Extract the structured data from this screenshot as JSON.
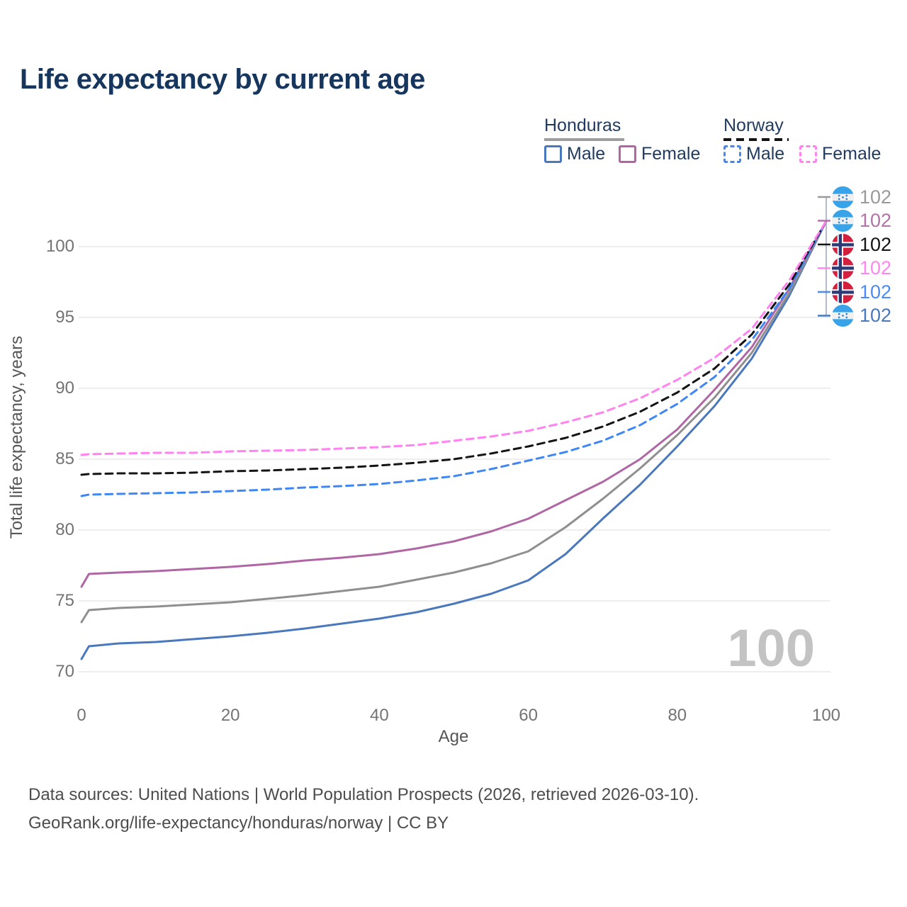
{
  "title": "Life expectancy by current age",
  "legend": {
    "honduras": {
      "label": "Honduras",
      "male": "Male",
      "female": "Female",
      "line_style": "solid",
      "underline_color": "#9e9e9e"
    },
    "norway": {
      "label": "Norway",
      "male": "Male",
      "female": "Female",
      "line_style": "dashed",
      "underline_color": "#141414"
    }
  },
  "colors": {
    "title_text": "#17365d",
    "legend_text": "#1f3a5e",
    "axis_text": "#737373",
    "axis_title_text": "#565656",
    "gridline": "#e8e8e8",
    "watermark": "#c3c3c3",
    "footer_text": "#4d4d4d",
    "honduras_male": "#4a78bd",
    "honduras_female": "#b066a5",
    "honduras_total": "#8f8f8f",
    "norway_male": "#3f87f5",
    "norway_female": "#ff82f0",
    "norway_total": "#141414",
    "bracket": "#9aa4b8",
    "honduras_flag_blue": "#38a3e8",
    "honduras_flag_star": "#2f7fd1",
    "norway_flag_red": "#d2203e",
    "norway_flag_navy": "#2b3a77"
  },
  "chart_data": {
    "type": "line",
    "title": "Life expectancy by current age",
    "xlabel": "Age",
    "ylabel": "Total life expectancy, years",
    "xlim": [
      0,
      100
    ],
    "ylim": [
      70,
      102
    ],
    "x_ticks": [
      0,
      20,
      40,
      60,
      80,
      100
    ],
    "y_ticks": [
      70,
      75,
      80,
      85,
      90,
      95,
      100
    ],
    "grid": "horizontal",
    "legend_position": "top-right",
    "series": [
      {
        "id": "honduras_male",
        "name": "Honduras Male",
        "color": "#4a78bd",
        "dash": "solid",
        "points": [
          [
            0,
            70.9
          ],
          [
            1,
            71.8
          ],
          [
            5,
            72.0
          ],
          [
            10,
            72.1
          ],
          [
            15,
            72.3
          ],
          [
            20,
            72.5
          ],
          [
            25,
            72.75
          ],
          [
            30,
            73.05
          ],
          [
            35,
            73.4
          ],
          [
            40,
            73.75
          ],
          [
            45,
            74.2
          ],
          [
            50,
            74.8
          ],
          [
            55,
            75.5
          ],
          [
            60,
            76.45
          ],
          [
            65,
            78.3
          ],
          [
            70,
            80.8
          ],
          [
            75,
            83.2
          ],
          [
            80,
            85.9
          ],
          [
            85,
            88.75
          ],
          [
            90,
            92.1
          ],
          [
            95,
            96.5
          ],
          [
            100,
            101.8
          ]
        ]
      },
      {
        "id": "honduras_total",
        "name": "Honduras",
        "color": "#8f8f8f",
        "dash": "solid",
        "points": [
          [
            0,
            73.5
          ],
          [
            1,
            74.35
          ],
          [
            5,
            74.5
          ],
          [
            10,
            74.6
          ],
          [
            15,
            74.75
          ],
          [
            20,
            74.9
          ],
          [
            25,
            75.15
          ],
          [
            30,
            75.4
          ],
          [
            35,
            75.7
          ],
          [
            40,
            76.0
          ],
          [
            45,
            76.5
          ],
          [
            50,
            77.0
          ],
          [
            55,
            77.65
          ],
          [
            60,
            78.5
          ],
          [
            65,
            80.2
          ],
          [
            70,
            82.2
          ],
          [
            75,
            84.35
          ],
          [
            80,
            86.7
          ],
          [
            85,
            89.35
          ],
          [
            90,
            92.5
          ],
          [
            95,
            96.7
          ],
          [
            100,
            101.8
          ]
        ]
      },
      {
        "id": "honduras_female",
        "name": "Honduras Female",
        "color": "#b066a5",
        "dash": "solid",
        "points": [
          [
            0,
            76.0
          ],
          [
            1,
            76.9
          ],
          [
            5,
            77.0
          ],
          [
            10,
            77.1
          ],
          [
            15,
            77.25
          ],
          [
            20,
            77.4
          ],
          [
            25,
            77.6
          ],
          [
            30,
            77.85
          ],
          [
            35,
            78.05
          ],
          [
            40,
            78.3
          ],
          [
            45,
            78.7
          ],
          [
            50,
            79.2
          ],
          [
            55,
            79.9
          ],
          [
            60,
            80.8
          ],
          [
            65,
            82.1
          ],
          [
            70,
            83.4
          ],
          [
            75,
            85.0
          ],
          [
            80,
            87.1
          ],
          [
            85,
            89.9
          ],
          [
            90,
            92.9
          ],
          [
            95,
            97.0
          ],
          [
            100,
            101.8
          ]
        ]
      },
      {
        "id": "norway_male",
        "name": "Norway Male",
        "color": "#3f87f5",
        "dash": "dashed",
        "points": [
          [
            0,
            82.4
          ],
          [
            1,
            82.5
          ],
          [
            5,
            82.55
          ],
          [
            10,
            82.6
          ],
          [
            15,
            82.65
          ],
          [
            20,
            82.75
          ],
          [
            25,
            82.85
          ],
          [
            30,
            83.0
          ],
          [
            35,
            83.1
          ],
          [
            40,
            83.25
          ],
          [
            45,
            83.5
          ],
          [
            50,
            83.8
          ],
          [
            55,
            84.3
          ],
          [
            60,
            84.9
          ],
          [
            65,
            85.5
          ],
          [
            70,
            86.3
          ],
          [
            75,
            87.4
          ],
          [
            80,
            88.9
          ],
          [
            85,
            90.8
          ],
          [
            90,
            93.4
          ],
          [
            95,
            97.0
          ],
          [
            100,
            101.8
          ]
        ]
      },
      {
        "id": "norway_total",
        "name": "Norway",
        "color": "#141414",
        "dash": "dashed",
        "points": [
          [
            0,
            83.9
          ],
          [
            1,
            83.95
          ],
          [
            5,
            84.0
          ],
          [
            10,
            84.0
          ],
          [
            15,
            84.05
          ],
          [
            20,
            84.15
          ],
          [
            25,
            84.2
          ],
          [
            30,
            84.3
          ],
          [
            35,
            84.4
          ],
          [
            40,
            84.55
          ],
          [
            45,
            84.75
          ],
          [
            50,
            85.0
          ],
          [
            55,
            85.4
          ],
          [
            60,
            85.9
          ],
          [
            65,
            86.5
          ],
          [
            70,
            87.3
          ],
          [
            75,
            88.35
          ],
          [
            80,
            89.7
          ],
          [
            85,
            91.4
          ],
          [
            90,
            93.8
          ],
          [
            95,
            97.3
          ],
          [
            100,
            101.8
          ]
        ]
      },
      {
        "id": "norway_female",
        "name": "Norway Female",
        "color": "#ff82f0",
        "dash": "dashed",
        "points": [
          [
            0,
            85.3
          ],
          [
            1,
            85.35
          ],
          [
            5,
            85.4
          ],
          [
            10,
            85.45
          ],
          [
            15,
            85.45
          ],
          [
            20,
            85.55
          ],
          [
            25,
            85.6
          ],
          [
            30,
            85.65
          ],
          [
            35,
            85.75
          ],
          [
            40,
            85.85
          ],
          [
            45,
            86.0
          ],
          [
            50,
            86.3
          ],
          [
            55,
            86.6
          ],
          [
            60,
            87.0
          ],
          [
            65,
            87.6
          ],
          [
            70,
            88.3
          ],
          [
            75,
            89.3
          ],
          [
            80,
            90.6
          ],
          [
            85,
            92.15
          ],
          [
            90,
            94.2
          ],
          [
            95,
            97.6
          ],
          [
            100,
            101.8
          ]
        ]
      }
    ],
    "end_labels": [
      {
        "flag": "honduras",
        "value": "102",
        "color": "#9a9a9a"
      },
      {
        "flag": "honduras",
        "value": "102",
        "color": "#b173a8"
      },
      {
        "flag": "norway",
        "value": "102",
        "color": "#141414"
      },
      {
        "flag": "norway",
        "value": "102",
        "color": "#ff85f1"
      },
      {
        "flag": "norway",
        "value": "102",
        "color": "#4b8bf5"
      },
      {
        "flag": "honduras",
        "value": "102",
        "color": "#4a78bd"
      }
    ]
  },
  "watermark": "100",
  "footer": {
    "line1": "Data sources: United Nations | World Population Prospects (2026, retrieved 2026-03-10).",
    "line2": "GeoRank.org/life-expectancy/honduras/norway | CC BY"
  }
}
